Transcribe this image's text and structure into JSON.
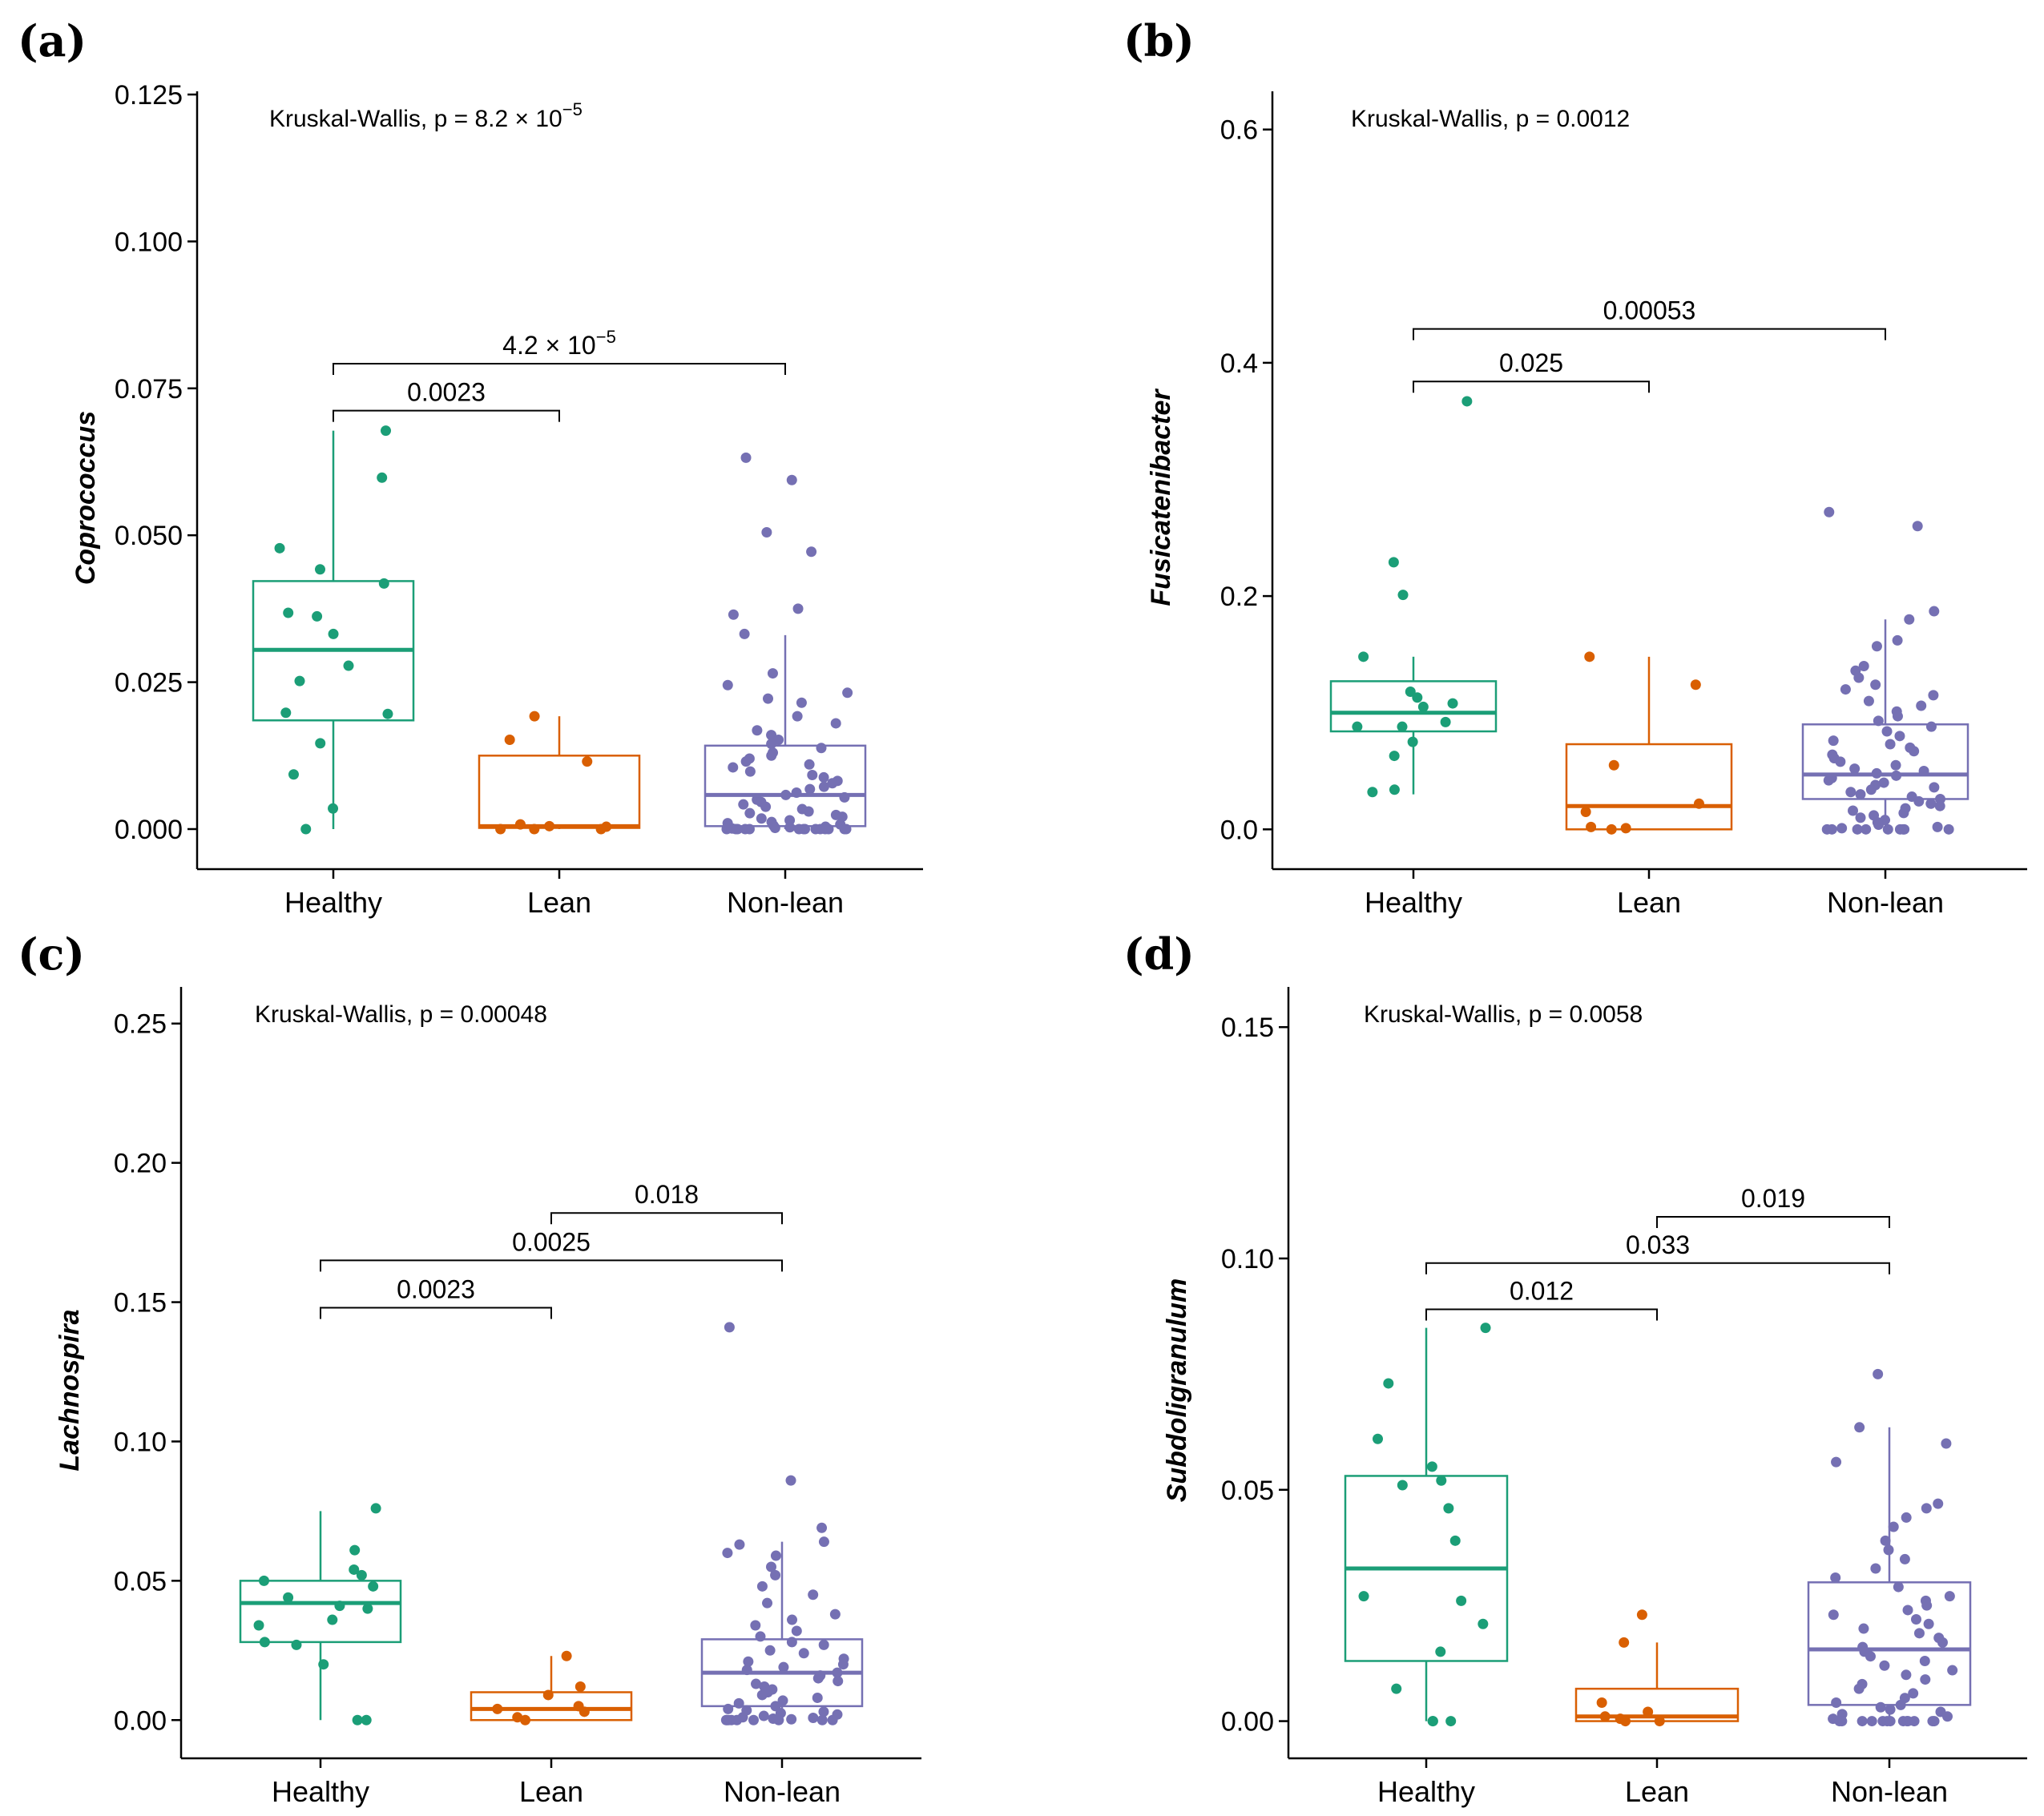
{
  "colors": {
    "Healthy": "#1b9e77",
    "Lean": "#d95f02",
    "Non-lean": "#7570b3"
  },
  "chart_data": [
    {
      "type": "box",
      "letter": "(a)",
      "ylabel": "Coprococcus",
      "categories": [
        "Healthy",
        "Lean",
        "Non-lean"
      ],
      "ylim": [
        -0.006,
        0.125
      ],
      "yticks": [
        0.0,
        0.025,
        0.05,
        0.075,
        0.1,
        0.125
      ],
      "tick_labels": [
        "0.000",
        "0.025",
        "0.050",
        "0.075",
        "0.100",
        "0.125"
      ],
      "kruskal": {
        "prefix": "Kruskal-Wallis, p = ",
        "mantissa": "8.2 × 10",
        "exponent": "−5"
      },
      "boxes": [
        {
          "q1": 0.0185,
          "median": 0.0305,
          "q3": 0.0422,
          "lo": 0.0,
          "hi": 0.0678
        },
        {
          "q1": 0.0002,
          "median": 0.0005,
          "q3": 0.0125,
          "lo": 0.0,
          "hi": 0.0192
        },
        {
          "q1": 0.0005,
          "median": 0.0058,
          "q3": 0.0142,
          "lo": 0.0,
          "hi": 0.033
        }
      ],
      "points": [
        [
          0.0598,
          0.0678,
          0.0478,
          0.0442,
          0.0418,
          0.0368,
          0.0362,
          0.0332,
          0.0278,
          0.0252,
          0.0198,
          0.0196,
          0.0146,
          0.0093,
          0.0035,
          0.0
        ],
        [
          0.0152,
          0.0115,
          0.0192,
          0.0,
          0.0,
          0.0004,
          0.0008,
          0.0,
          0.0005
        ],
        [
          0.0632,
          0.0594,
          0.0505,
          0.0472,
          0.0375,
          0.0365,
          0.0332,
          0.0265,
          0.0245,
          0.0232,
          0.0222,
          0.0215,
          0.0192,
          0.018,
          0.0168,
          0.016,
          0.0152,
          0.0145,
          0.0138,
          0.013,
          0.0125,
          0.012,
          0.0115,
          0.011,
          0.0105,
          0.0098,
          0.0092,
          0.0088,
          0.0082,
          0.0078,
          0.0072,
          0.0068,
          0.0062,
          0.0058,
          0.0054,
          0.005,
          0.0046,
          0.0042,
          0.0038,
          0.0034,
          0.003,
          0.0027,
          0.0024,
          0.0021,
          0.0018,
          0.0015,
          0.0012,
          0.001,
          0.0008,
          0.0006,
          0.0004,
          0.0003,
          0.0002,
          0.0001,
          0.0,
          0.0,
          0.0,
          0.0,
          0.0,
          0.0,
          0.0,
          0.0,
          0.0,
          0.0,
          0.0,
          0.0,
          0.0,
          0.0
        ]
      ],
      "brackets": [
        {
          "from": 0,
          "to": 2,
          "y": 0.0792,
          "label": "4.2 × 10",
          "exponent": "−5"
        },
        {
          "from": 0,
          "to": 1,
          "y": 0.0712,
          "label": "0.0023",
          "exponent": ""
        }
      ]
    },
    {
      "type": "box",
      "letter": "(b)",
      "ylabel": "Fusicatenibacter",
      "categories": [
        "Healthy",
        "Lean",
        "Non-lean"
      ],
      "ylim": [
        -0.03,
        0.63
      ],
      "yticks": [
        0.0,
        0.2,
        0.4,
        0.6
      ],
      "tick_labels": [
        "0.0",
        "0.2",
        "0.4",
        "0.6"
      ],
      "kruskal": {
        "prefix": "Kruskal-Wallis, p = 0.0012",
        "mantissa": "",
        "exponent": ""
      },
      "boxes": [
        {
          "q1": 0.084,
          "median": 0.1,
          "q3": 0.127,
          "lo": 0.03,
          "hi": 0.148
        },
        {
          "q1": 0.0,
          "median": 0.02,
          "q3": 0.073,
          "lo": 0.0,
          "hi": 0.148
        },
        {
          "q1": 0.026,
          "median": 0.047,
          "q3": 0.09,
          "lo": 0.0,
          "hi": 0.18
        }
      ],
      "points": [
        [
          0.367,
          0.229,
          0.201,
          0.148,
          0.118,
          0.113,
          0.108,
          0.105,
          0.092,
          0.088,
          0.088,
          0.075,
          0.063,
          0.034,
          0.032
        ],
        [
          0.148,
          0.124,
          0.055,
          0.022,
          0.015,
          0.002,
          0.001,
          0.0
        ],
        [
          0.272,
          0.26,
          0.187,
          0.18,
          0.162,
          0.157,
          0.14,
          0.136,
          0.13,
          0.124,
          0.12,
          0.115,
          0.11,
          0.106,
          0.101,
          0.097,
          0.093,
          0.088,
          0.084,
          0.08,
          0.076,
          0.073,
          0.07,
          0.067,
          0.064,
          0.061,
          0.058,
          0.055,
          0.052,
          0.05,
          0.048,
          0.046,
          0.044,
          0.042,
          0.04,
          0.038,
          0.036,
          0.034,
          0.032,
          0.03,
          0.028,
          0.026,
          0.024,
          0.022,
          0.02,
          0.018,
          0.016,
          0.014,
          0.012,
          0.01,
          0.008,
          0.006,
          0.004,
          0.002,
          0.001,
          0.0,
          0.0,
          0.0,
          0.0,
          0.0,
          0.0,
          0.0,
          0.0,
          0.0
        ]
      ],
      "brackets": [
        {
          "from": 0,
          "to": 2,
          "y": 0.429,
          "label": "0.00053",
          "exponent": ""
        },
        {
          "from": 0,
          "to": 1,
          "y": 0.384,
          "label": "0.025",
          "exponent": ""
        }
      ]
    },
    {
      "type": "box",
      "letter": "(c)",
      "ylabel": "Lachnospira",
      "categories": [
        "Healthy",
        "Lean",
        "Non-lean"
      ],
      "ylim": [
        -0.012,
        0.262
      ],
      "yticks": [
        0.0,
        0.05,
        0.1,
        0.15,
        0.2,
        0.25
      ],
      "tick_labels": [
        "0.00",
        "0.05",
        "0.10",
        "0.15",
        "0.20",
        "0.25"
      ],
      "kruskal": {
        "prefix": "Kruskal-Wallis, p = 0.00048",
        "mantissa": "",
        "exponent": ""
      },
      "boxes": [
        {
          "q1": 0.028,
          "median": 0.042,
          "q3": 0.05,
          "lo": 0.0,
          "hi": 0.075
        },
        {
          "q1": 0.0,
          "median": 0.004,
          "q3": 0.01,
          "lo": 0.0,
          "hi": 0.023
        },
        {
          "q1": 0.005,
          "median": 0.017,
          "q3": 0.029,
          "lo": 0.0,
          "hi": 0.064
        }
      ],
      "points": [
        [
          0.076,
          0.061,
          0.054,
          0.052,
          0.05,
          0.048,
          0.044,
          0.041,
          0.04,
          0.036,
          0.034,
          0.028,
          0.027,
          0.02,
          0.0,
          0.0
        ],
        [
          0.023,
          0.012,
          0.009,
          0.005,
          0.004,
          0.003,
          0.001,
          0.0
        ],
        [
          0.141,
          0.086,
          0.069,
          0.064,
          0.063,
          0.06,
          0.059,
          0.055,
          0.052,
          0.048,
          0.045,
          0.042,
          0.038,
          0.036,
          0.034,
          0.032,
          0.03,
          0.028,
          0.027,
          0.025,
          0.024,
          0.022,
          0.021,
          0.02,
          0.019,
          0.018,
          0.017,
          0.016,
          0.015,
          0.014,
          0.013,
          0.012,
          0.011,
          0.01,
          0.009,
          0.008,
          0.007,
          0.006,
          0.005,
          0.004,
          0.0035,
          0.003,
          0.0025,
          0.002,
          0.0015,
          0.001,
          0.0008,
          0.0005,
          0.0003,
          0.0,
          0.0,
          0.0,
          0.0,
          0.0,
          0.0,
          0.0,
          0.0,
          0.0
        ]
      ],
      "brackets": [
        {
          "from": 1,
          "to": 2,
          "y": 0.182,
          "label": "0.018",
          "exponent": ""
        },
        {
          "from": 0,
          "to": 2,
          "y": 0.165,
          "label": "0.0025",
          "exponent": ""
        },
        {
          "from": 0,
          "to": 1,
          "y": 0.148,
          "label": "0.0023",
          "exponent": ""
        }
      ]
    },
    {
      "type": "box",
      "letter": "(d)",
      "ylabel": "Subdoligranulum",
      "categories": [
        "Healthy",
        "Lean",
        "Non-lean"
      ],
      "ylim": [
        -0.007,
        0.158
      ],
      "yticks": [
        0.0,
        0.05,
        0.1,
        0.15
      ],
      "tick_labels": [
        "0.00",
        "0.05",
        "0.10",
        "0.15"
      ],
      "kruskal": {
        "prefix": "Kruskal-Wallis, p = 0.0058",
        "mantissa": "",
        "exponent": ""
      },
      "boxes": [
        {
          "q1": 0.013,
          "median": 0.033,
          "q3": 0.053,
          "lo": 0.0,
          "hi": 0.085
        },
        {
          "q1": 0.0,
          "median": 0.001,
          "q3": 0.007,
          "lo": 0.0,
          "hi": 0.017
        },
        {
          "q1": 0.0035,
          "median": 0.0155,
          "q3": 0.03,
          "lo": 0.0,
          "hi": 0.0635
        }
      ],
      "points": [
        [
          0.085,
          0.073,
          0.061,
          0.055,
          0.052,
          0.051,
          0.046,
          0.039,
          0.027,
          0.026,
          0.021,
          0.015,
          0.007,
          0.0,
          0.0,
          0.0
        ],
        [
          0.023,
          0.017,
          0.004,
          0.002,
          0.001,
          0.0005,
          0.0,
          0.0
        ],
        [
          0.075,
          0.0635,
          0.06,
          0.056,
          0.047,
          0.046,
          0.044,
          0.042,
          0.039,
          0.037,
          0.035,
          0.033,
          0.031,
          0.029,
          0.027,
          0.026,
          0.025,
          0.024,
          0.023,
          0.022,
          0.021,
          0.02,
          0.019,
          0.018,
          0.017,
          0.016,
          0.015,
          0.014,
          0.013,
          0.012,
          0.011,
          0.01,
          0.009,
          0.008,
          0.007,
          0.006,
          0.005,
          0.004,
          0.0035,
          0.003,
          0.0025,
          0.002,
          0.0015,
          0.001,
          0.0005,
          0.0,
          0.0,
          0.0,
          0.0,
          0.0,
          0.0,
          0.0,
          0.0,
          0.0,
          0.0,
          0.0,
          0.0,
          0.0
        ]
      ],
      "brackets": [
        {
          "from": 1,
          "to": 2,
          "y": 0.109,
          "label": "0.019",
          "exponent": ""
        },
        {
          "from": 0,
          "to": 2,
          "y": 0.099,
          "label": "0.033",
          "exponent": ""
        },
        {
          "from": 0,
          "to": 1,
          "y": 0.089,
          "label": "0.012",
          "exponent": ""
        }
      ]
    }
  ]
}
